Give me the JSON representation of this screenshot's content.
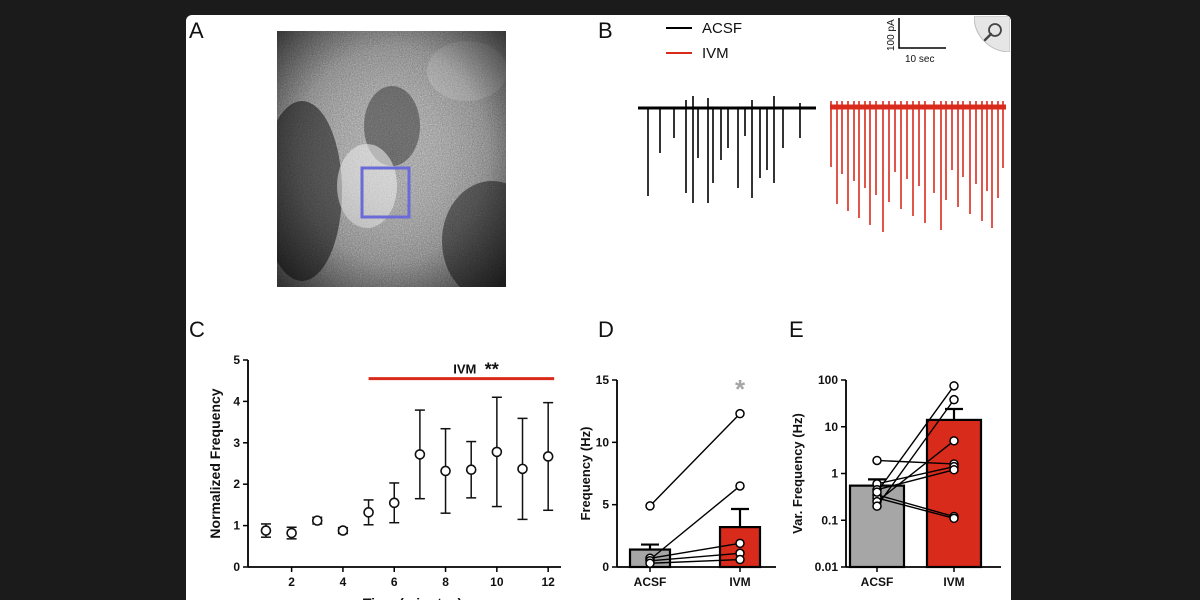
{
  "panels": {
    "a": "A",
    "b": "B",
    "c": "C",
    "d": "D",
    "e": "E"
  },
  "colors": {
    "acsf_trace": "#000000",
    "ivm": "#d92b1c",
    "acsf_bar": "#a6a6a6",
    "roi_box": "#6a6ad8"
  },
  "icons": {
    "zoom": "magnifier-icon"
  },
  "legend_b": {
    "acsf": "ACSF",
    "ivm": "IVM"
  },
  "scale_bar": {
    "y": "100 pA",
    "x": "10 sec"
  },
  "chart_data": [
    {
      "id": "C",
      "type": "scatter",
      "xlabel": "Time (minutes)",
      "ylabel": "Normalized Frequency",
      "xlim": [
        0.3,
        12.5
      ],
      "ylim": [
        0,
        5
      ],
      "xticks": [
        2,
        4,
        6,
        8,
        10,
        12
      ],
      "yticks": [
        0,
        1,
        2,
        3,
        4,
        5
      ],
      "x": [
        1,
        2,
        3,
        4,
        5,
        6,
        7,
        8,
        9,
        10,
        11,
        12
      ],
      "y": [
        0.88,
        0.82,
        1.12,
        0.88,
        1.32,
        1.55,
        2.72,
        2.32,
        2.35,
        2.78,
        2.37,
        2.67
      ],
      "err": [
        0.16,
        0.14,
        0.08,
        0.07,
        0.3,
        0.48,
        1.07,
        1.02,
        0.68,
        1.32,
        1.22,
        1.3
      ],
      "annotation": {
        "label": "IVM",
        "significance": "**",
        "x_start": 5,
        "x_end": 12,
        "y": 4.55
      }
    },
    {
      "id": "D",
      "type": "bar",
      "categories": [
        "ACSF",
        "IVM"
      ],
      "values": [
        1.4,
        3.2
      ],
      "sem": [
        0.4,
        1.45
      ],
      "ylabel": "Frequency (Hz)",
      "ylim": [
        0,
        15
      ],
      "yticks": [
        0,
        5,
        10,
        15
      ],
      "significance": "*",
      "pairs": [
        [
          4.9,
          12.3
        ],
        [
          0.6,
          6.5
        ],
        [
          0.7,
          1.9
        ],
        [
          0.5,
          1.1
        ],
        [
          0.3,
          0.6
        ]
      ]
    },
    {
      "id": "E",
      "type": "bar",
      "categories": [
        "ACSF",
        "IVM"
      ],
      "values": [
        0.55,
        14.0
      ],
      "sem": [
        0.2,
        10.0
      ],
      "ylabel": "Var. Frequency (Hz)",
      "yscale": "log",
      "ylim": [
        0.01,
        100
      ],
      "yticks": [
        0.01,
        0.1,
        1,
        10,
        100
      ],
      "ytick_labels": [
        "0.01",
        "0.1",
        "1",
        "10",
        "100"
      ],
      "pairs": [
        [
          1.9,
          1.6
        ],
        [
          0.6,
          1.4
        ],
        [
          0.45,
          1.2
        ],
        [
          0.35,
          0.12
        ],
        [
          0.3,
          0.11
        ],
        [
          0.25,
          5.0
        ],
        [
          0.2,
          38.0
        ],
        [
          0.4,
          75.0
        ]
      ]
    }
  ]
}
